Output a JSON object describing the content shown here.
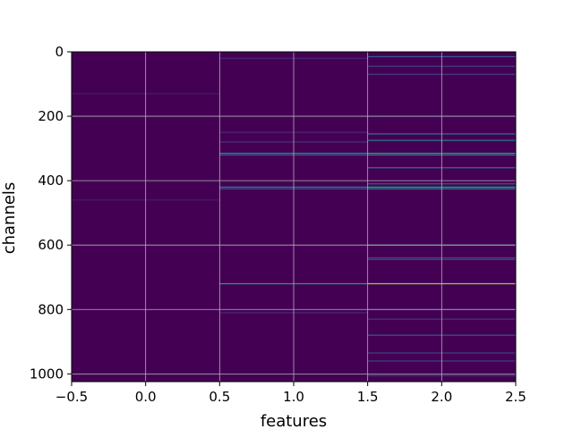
{
  "chart_data": {
    "type": "heatmap",
    "title": "",
    "xlabel": "features",
    "ylabel": "channels",
    "x_range": [
      -0.5,
      2.5
    ],
    "y_range": [
      1024,
      0
    ],
    "y_inverted": true,
    "x_ticks": [
      -0.5,
      0.0,
      0.5,
      1.0,
      1.5,
      2.0,
      2.5
    ],
    "x_tick_labels": [
      "−0.5",
      "0.0",
      "0.5",
      "1.0",
      "1.5",
      "2.0",
      "2.5"
    ],
    "y_ticks": [
      0,
      200,
      400,
      600,
      800,
      1000
    ],
    "y_tick_labels": [
      "0",
      "200",
      "400",
      "600",
      "800",
      "1000"
    ],
    "grid": true,
    "colormap": "viridis",
    "value_range": [
      0,
      1
    ],
    "columns": [
      0,
      1,
      2
    ],
    "rows": 1024,
    "background_value": 0.0,
    "highlights": [
      {
        "column": 1,
        "row": 315,
        "value": 0.45
      },
      {
        "column": 1,
        "row": 320,
        "value": 0.35
      },
      {
        "column": 1,
        "row": 420,
        "value": 0.4
      },
      {
        "column": 1,
        "row": 425,
        "value": 0.3
      },
      {
        "column": 1,
        "row": 720,
        "value": 0.55
      },
      {
        "column": 1,
        "row": 280,
        "value": 0.15
      },
      {
        "column": 1,
        "row": 250,
        "value": 0.12
      },
      {
        "column": 1,
        "row": 20,
        "value": 0.12
      },
      {
        "column": 1,
        "row": 810,
        "value": 0.12
      },
      {
        "column": 2,
        "row": 15,
        "value": 0.3
      },
      {
        "column": 2,
        "row": 45,
        "value": 0.2
      },
      {
        "column": 2,
        "row": 70,
        "value": 0.2
      },
      {
        "column": 2,
        "row": 200,
        "value": 0.18
      },
      {
        "column": 2,
        "row": 255,
        "value": 0.4
      },
      {
        "column": 2,
        "row": 275,
        "value": 0.45
      },
      {
        "column": 2,
        "row": 315,
        "value": 0.55
      },
      {
        "column": 2,
        "row": 320,
        "value": 0.45
      },
      {
        "column": 2,
        "row": 360,
        "value": 0.4
      },
      {
        "column": 2,
        "row": 410,
        "value": 0.3
      },
      {
        "column": 2,
        "row": 420,
        "value": 0.55
      },
      {
        "column": 2,
        "row": 425,
        "value": 0.5
      },
      {
        "column": 2,
        "row": 600,
        "value": 0.45
      },
      {
        "column": 2,
        "row": 640,
        "value": 0.25
      },
      {
        "column": 2,
        "row": 645,
        "value": 0.2
      },
      {
        "column": 2,
        "row": 720,
        "value": 0.85
      },
      {
        "column": 2,
        "row": 800,
        "value": 0.2
      },
      {
        "column": 2,
        "row": 830,
        "value": 0.18
      },
      {
        "column": 2,
        "row": 880,
        "value": 0.3
      },
      {
        "column": 2,
        "row": 935,
        "value": 0.2
      },
      {
        "column": 2,
        "row": 960,
        "value": 0.2
      },
      {
        "column": 2,
        "row": 1005,
        "value": 0.2
      },
      {
        "column": 0,
        "row": 130,
        "value": 0.08
      },
      {
        "column": 0,
        "row": 460,
        "value": 0.07
      },
      {
        "column": 0,
        "row": 1000,
        "value": 0.07
      }
    ]
  }
}
